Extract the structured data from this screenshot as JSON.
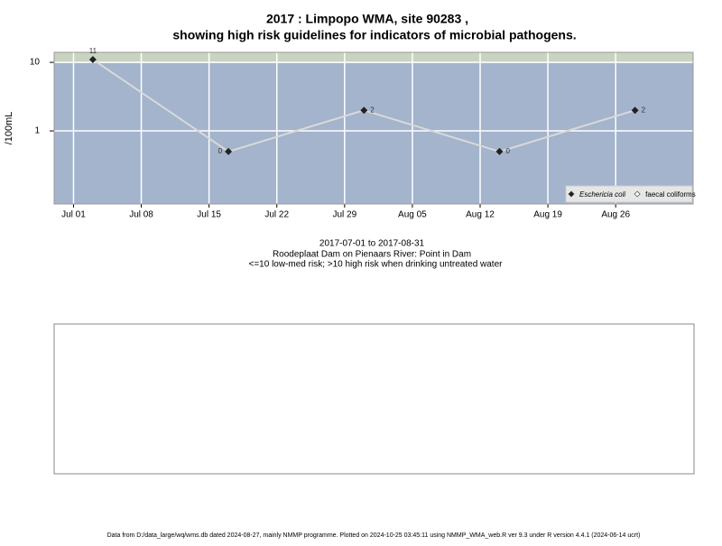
{
  "chart_data": {
    "type": "line",
    "title": [
      "2017 : Limpopo WMA, site 90283 ,",
      "showing high risk guidelines for indicators of microbial pathogens."
    ],
    "subtitle": [
      "2017-07-01 to 2017-08-31",
      "Roodeplaat Dam on Pienaars River: Point in Dam",
      "<=10 low-med risk; >10 high risk when drinking untreated water"
    ],
    "y_label": "/100mL",
    "footer": "Data from D:/data_large/wq/wms.db dated 2024-08-27, mainly NMMP programme. Plotted on 2024-10-25 03:45:11 using NMMP_WMA_web.R ver 9.3 under R version 4.4.1 (2024-06-14 ucrt)",
    "x": [
      "2017-07-03",
      "2017-07-17",
      "2017-07-31",
      "2017-08-14",
      "2017-08-28"
    ],
    "series": [
      {
        "name": "Eschericia coli",
        "color": "#222222",
        "line_color": "#d9d9d9",
        "values": [
          11,
          0.5,
          2,
          0.5,
          2
        ],
        "value_labels": [
          "11",
          "0",
          "2",
          "0",
          "2"
        ]
      },
      {
        "name": "faecal coliforms",
        "color": "#ffffff",
        "values": [
          null,
          null,
          null,
          null,
          null
        ]
      }
    ],
    "xlim": [
      "2017-06-29",
      "2017-09-03"
    ],
    "xticks": [
      {
        "value": "2017-07-01",
        "label": "Jul 01"
      },
      {
        "value": "2017-07-08",
        "label": "Jul 08"
      },
      {
        "value": "2017-07-15",
        "label": "Jul 15"
      },
      {
        "value": "2017-07-22",
        "label": "Jul 22"
      },
      {
        "value": "2017-07-29",
        "label": "Jul 29"
      },
      {
        "value": "2017-08-05",
        "label": "Aug 05"
      },
      {
        "value": "2017-08-12",
        "label": "Aug 12"
      },
      {
        "value": "2017-08-19",
        "label": "Aug 19"
      },
      {
        "value": "2017-08-26",
        "label": "Aug 26"
      }
    ],
    "ylim": [
      0.086,
      14
    ],
    "yticks": [
      1,
      10
    ],
    "log_y": true,
    "grid": true,
    "high_risk_threshold": 10,
    "low_risk_color": "#a3b4cc",
    "high_risk_color": "#c8d4c0",
    "legend": "bottomright"
  }
}
